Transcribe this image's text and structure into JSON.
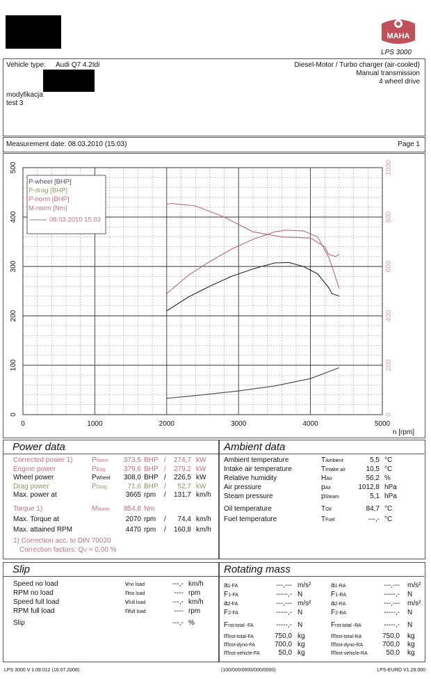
{
  "header": {
    "brand": "MAHA",
    "model": "LPS 3000"
  },
  "vehicle": {
    "type_label": "Vehicle type:",
    "type_value": "Audi Q7 4.2tdi",
    "modification": "modyfikacja",
    "test": "test 3",
    "engine": "Diesel-Motor / Turbo charger (air-cooled)",
    "transmission": "Manual transmission",
    "drive": "4 wheel drive"
  },
  "measurement": {
    "label": "Measurement date: 08.03.2010 (15:03)",
    "page": "Page 1"
  },
  "chart_data": {
    "type": "line",
    "x_label": "n [rpm]",
    "x_ticks": [
      "0",
      "1000",
      "2000",
      "3000",
      "4000",
      "5000"
    ],
    "y_left_ticks": [
      "0",
      "100",
      "200",
      "300",
      "400",
      "500"
    ],
    "y_right_ticks": [
      "0",
      "200",
      "400",
      "600",
      "800",
      "1000"
    ],
    "xlim": [
      0,
      5000
    ],
    "ylim_left": [
      0,
      500
    ],
    "ylim_right": [
      0,
      1000
    ],
    "legend": [
      "P-wheel [BHP]",
      "P-drag [BHP]",
      "P-norm [BHP]",
      "M-norm [Nm]",
      "08.03.2010 15:03"
    ],
    "legend_position": "top-left",
    "series": [
      {
        "name": "P-wheel [BHP]",
        "color": "#222222",
        "axis": "left",
        "x": [
          2000,
          2300,
          2600,
          2900,
          3200,
          3500,
          3700,
          3900,
          4100,
          4250,
          4300,
          4400
        ],
        "y": [
          210,
          238,
          260,
          280,
          295,
          307,
          308,
          300,
          285,
          258,
          245,
          240
        ]
      },
      {
        "name": "P-norm [BHP]",
        "color": "#b86878",
        "axis": "left",
        "x": [
          2000,
          2300,
          2600,
          2900,
          3200,
          3500,
          3665,
          3900,
          4100,
          4250,
          4300,
          4400
        ],
        "y": [
          245,
          282,
          310,
          335,
          355,
          370,
          373.5,
          372,
          360,
          320,
          300,
          255
        ]
      },
      {
        "name": "M-norm [Nm]",
        "color": "#b86878",
        "axis": "right",
        "x": [
          2000,
          2070,
          2400,
          2800,
          3200,
          3600,
          4000,
          4200,
          4250,
          4350,
          4400
        ],
        "y": [
          852,
          854.8,
          845,
          800,
          740,
          720,
          715,
          680,
          650,
          640,
          650
        ]
      },
      {
        "name": "P-drag [BHP]",
        "color": "#444444",
        "axis": "left",
        "x": [
          2000,
          2500,
          3000,
          3500,
          4000,
          4400
        ],
        "y": [
          33,
          40,
          48,
          58,
          73,
          95
        ]
      }
    ]
  },
  "power": {
    "title": "Power data",
    "rows": [
      {
        "label": "Corrected power 1)",
        "sym": "P",
        "sub": "Norm",
        "v1": "373,5",
        "u1": "BHP",
        "sep": "/",
        "v2": "274,7",
        "u2": "kW",
        "color": "pink"
      },
      {
        "label": "Engine power",
        "sym": "P",
        "sub": "Eng",
        "v1": "379,6",
        "u1": "BHP",
        "sep": "/",
        "v2": "279,2",
        "u2": "kW",
        "color": "pink"
      },
      {
        "label": "Wheel power",
        "sym": "P",
        "sub": "Wheel",
        "v1": "308,0",
        "u1": "BHP",
        "sep": "/",
        "v2": "226,5",
        "u2": "kW",
        "color": ""
      },
      {
        "label": "Drag power",
        "sym": "P",
        "sub": "Drag",
        "v1": "71,6",
        "u1": "BHP",
        "sep": "/",
        "v2": "52,7",
        "u2": "kW",
        "color": "green"
      },
      {
        "label": "Max. power at",
        "sym": "",
        "sub": "",
        "v1": "3665",
        "u1": "rpm",
        "sep": "/",
        "v2": "131,7",
        "u2": "km/h",
        "color": ""
      }
    ],
    "torque": [
      {
        "label": "Torque 1)",
        "sym": "M",
        "sub": "Norm",
        "v1": "854,8",
        "u1": "Nm",
        "sep": "",
        "v2": "",
        "u2": "",
        "color": "pink"
      },
      {
        "label": "Max. Torque at",
        "sym": "",
        "sub": "",
        "v1": "2070",
        "u1": "rpm",
        "sep": "/",
        "v2": "74,4",
        "u2": "km/h",
        "color": ""
      },
      {
        "label": "Max. attained RPM",
        "sym": "",
        "sub": "",
        "v1": "4470",
        "u1": "rpm",
        "sep": "/",
        "v2": "160,8",
        "u2": "km/h",
        "color": ""
      }
    ],
    "note1": "1) Correction acc. to DIN 70020",
    "note2": "Correction factors: Q",
    "note2_sub": "V",
    "note2_val": "=    0,00 %"
  },
  "ambient": {
    "title": "Ambient data",
    "rows": [
      {
        "label": "Ambient temperature",
        "sym": "T",
        "sub": "Ambient",
        "val": "5,5",
        "unit": "°C"
      },
      {
        "label": "Intake air temperature",
        "sym": "T",
        "sub": "Intake air",
        "val": "10,5",
        "unit": "°C"
      },
      {
        "label": "Relative humidity",
        "sym": "H",
        "sub": "Air",
        "val": "56,2",
        "unit": "%"
      },
      {
        "label": "Air pressure",
        "sym": "p",
        "sub": "Air",
        "val": "1012,8",
        "unit": "hPa"
      },
      {
        "label": "Steam pressure",
        "sym": "p",
        "sub": "Steam",
        "val": "5,1",
        "unit": "hPa"
      },
      {
        "label": "Oil temperature",
        "sym": "T",
        "sub": "Oil",
        "val": "84,7",
        "unit": "°C"
      },
      {
        "label": "Fuel temperature",
        "sym": "T",
        "sub": "Fuel",
        "val": "---,-",
        "unit": "°C"
      }
    ]
  },
  "slip": {
    "title": "Slip",
    "rows": [
      {
        "label": "Speed no load",
        "sym": "v",
        "sub": "no load",
        "val": "---,-",
        "unit": "km/h"
      },
      {
        "label": "RPM no load",
        "sym": "n",
        "sub": "no load",
        "val": "----",
        "unit": "rpm"
      },
      {
        "label": "Speed full load",
        "sym": "v",
        "sub": "full load",
        "val": "---,-",
        "unit": "km/h"
      },
      {
        "label": "RPM full load",
        "sym": "n",
        "sub": "full load",
        "val": "----",
        "unit": "rpm"
      },
      {
        "label": "Slip",
        "sym": "",
        "sub": "",
        "val": "---,-",
        "unit": "%"
      }
    ]
  },
  "rotating": {
    "title": "Rotating mass",
    "left": [
      {
        "sym": "a",
        "sub": "1-FA",
        "val": "---,---",
        "unit": "m/s²"
      },
      {
        "sym": "F",
        "sub": "1-FA",
        "val": "-----,-",
        "unit": "N"
      },
      {
        "sym": "a",
        "sub": "2-FA",
        "val": "---,---",
        "unit": "m/s²"
      },
      {
        "sym": "F",
        "sub": "2-FA",
        "val": "-----,-",
        "unit": "N"
      },
      {
        "sym": "F",
        "sub": "rot-total -FA",
        "val": "-----,-",
        "unit": "N"
      },
      {
        "sym": "m",
        "sub": "rot-total-FA",
        "val": "750,0",
        "unit": "kg"
      },
      {
        "sym": "m",
        "sub": "rot-dyno-FA",
        "val": "700,0",
        "unit": "kg"
      },
      {
        "sym": "m",
        "sub": "rot-vehicle-FA",
        "val": "50,0",
        "unit": "kg"
      }
    ],
    "right": [
      {
        "sym": "a",
        "sub": "1-RA",
        "val": "---,---",
        "unit": "m/s²"
      },
      {
        "sym": "F",
        "sub": "1-RA",
        "val": "-----,-",
        "unit": "N"
      },
      {
        "sym": "a",
        "sub": "2-RA",
        "val": "---,---",
        "unit": "m/s²"
      },
      {
        "sym": "F",
        "sub": "2-RA",
        "val": "-----,-",
        "unit": "N"
      },
      {
        "sym": "F",
        "sub": "rot-total -RA",
        "val": "-----,-",
        "unit": "N"
      },
      {
        "sym": "m",
        "sub": "rot-total-RA",
        "val": "750,0",
        "unit": "kg"
      },
      {
        "sym": "m",
        "sub": "rot-dyno-RA",
        "val": "700,0",
        "unit": "kg"
      },
      {
        "sym": "m",
        "sub": "rot-vehicle-RA",
        "val": "50,0",
        "unit": "kg"
      }
    ]
  },
  "footer": {
    "left": "LPS 3000 V 1.09.012 (16.07.2008)",
    "mid": "(100/000/0000/000/0000)",
    "right": "LPS-EURO V1.29.000"
  }
}
